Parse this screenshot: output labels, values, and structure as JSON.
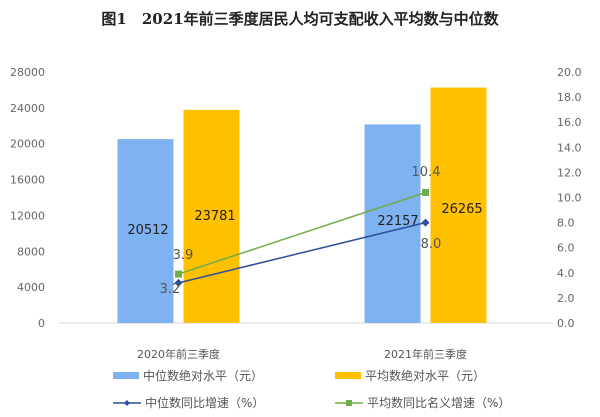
{
  "chart_data": {
    "type": "bar+line",
    "title": "图1　2021年前三季度居民人均可支配收入平均数与中位数",
    "categories": [
      "2020年前三季度",
      "2021年前三季度"
    ],
    "bar_series": [
      {
        "name": "中位数绝对水平（元）",
        "values": [
          20512,
          22157
        ],
        "color": "#7fb2f0",
        "labels": [
          "20512",
          "22157"
        ]
      },
      {
        "name": "平均数绝对水平（元）",
        "values": [
          23781,
          26265
        ],
        "color": "#ffc000",
        "labels": [
          "23781",
          "26265"
        ]
      }
    ],
    "line_series": [
      {
        "name": "中位数同比增速（%）",
        "values": [
          3.2,
          8.0
        ],
        "color": "#2f4f9a",
        "marker": "diamond",
        "labels": [
          "3.2",
          "8.0"
        ]
      },
      {
        "name": "平均数同比名义增速（%）",
        "values": [
          3.9,
          10.4
        ],
        "color": "#70ad47",
        "marker": "square",
        "labels": [
          "3.9",
          "10.4"
        ]
      }
    ],
    "y_left": {
      "range": [
        0,
        28000
      ],
      "ticks": [
        "0",
        "4000",
        "8000",
        "12000",
        "16000",
        "20000",
        "24000",
        "28000"
      ]
    },
    "y_right": {
      "range": [
        0,
        20
      ],
      "ticks": [
        "0.0",
        "2.0",
        "4.0",
        "6.0",
        "8.0",
        "10.0",
        "12.0",
        "14.0",
        "16.0",
        "18.0",
        "20.0"
      ]
    },
    "grid": false,
    "legend": "bottom"
  }
}
